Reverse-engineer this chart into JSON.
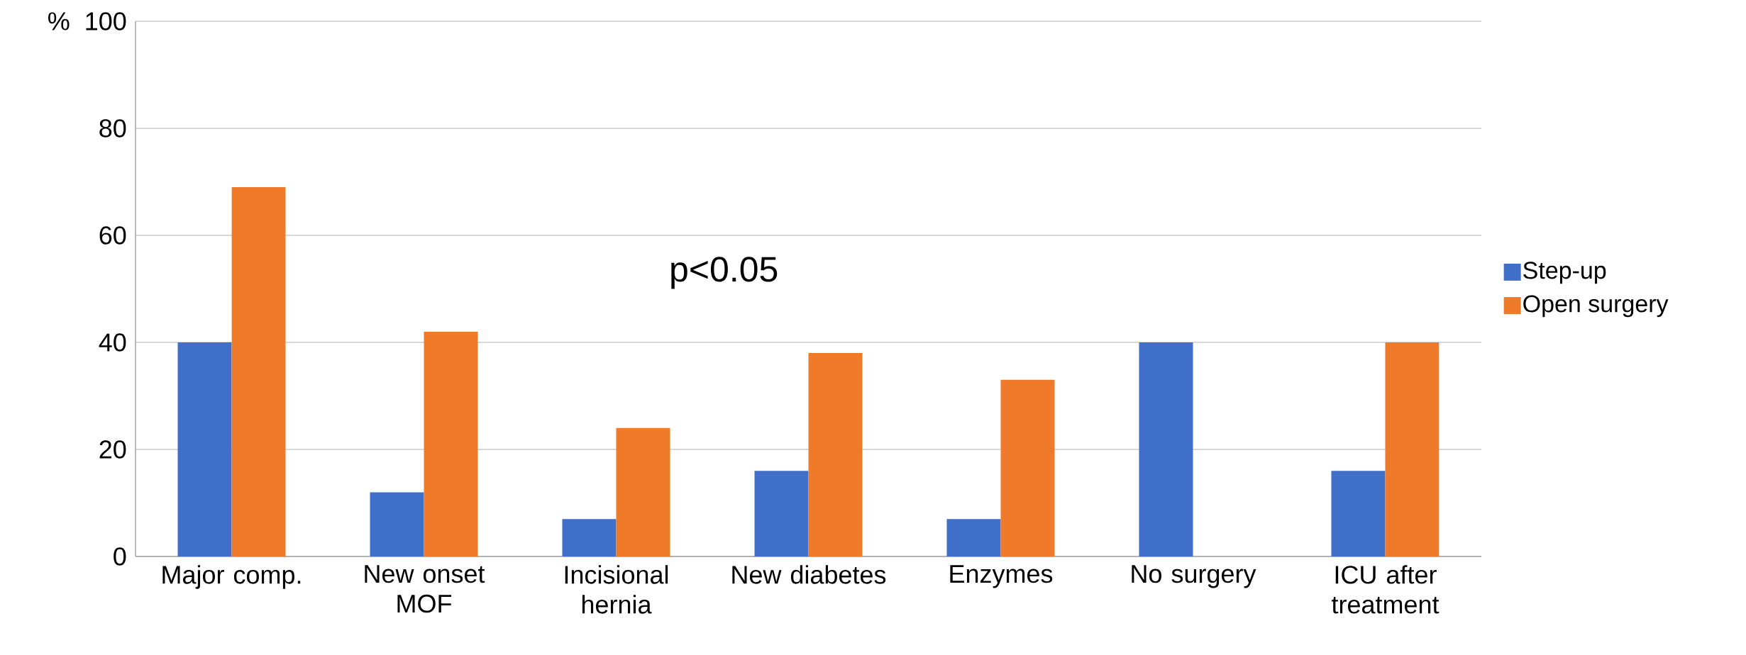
{
  "chart_data": {
    "type": "bar",
    "ylabel": "%",
    "categories": [
      "Major comp.",
      "New onset MOF",
      "Incisional hernia",
      "New diabetes",
      "Enzymes",
      "No surgery",
      "ICU after treatment"
    ],
    "series": [
      {
        "name": "Step-up",
        "color": "#3f6fc8",
        "values": [
          40,
          12,
          7,
          16,
          7,
          40,
          16
        ]
      },
      {
        "name": "Open surgery",
        "color": "#ef7b2a",
        "values": [
          69,
          42,
          24,
          38,
          33,
          0,
          40
        ]
      }
    ],
    "ylim": [
      0,
      100
    ],
    "yticks": [
      0,
      20,
      40,
      60,
      80,
      100
    ],
    "grid": "y",
    "legend": "right",
    "annotations": [
      "p<0.05"
    ]
  }
}
